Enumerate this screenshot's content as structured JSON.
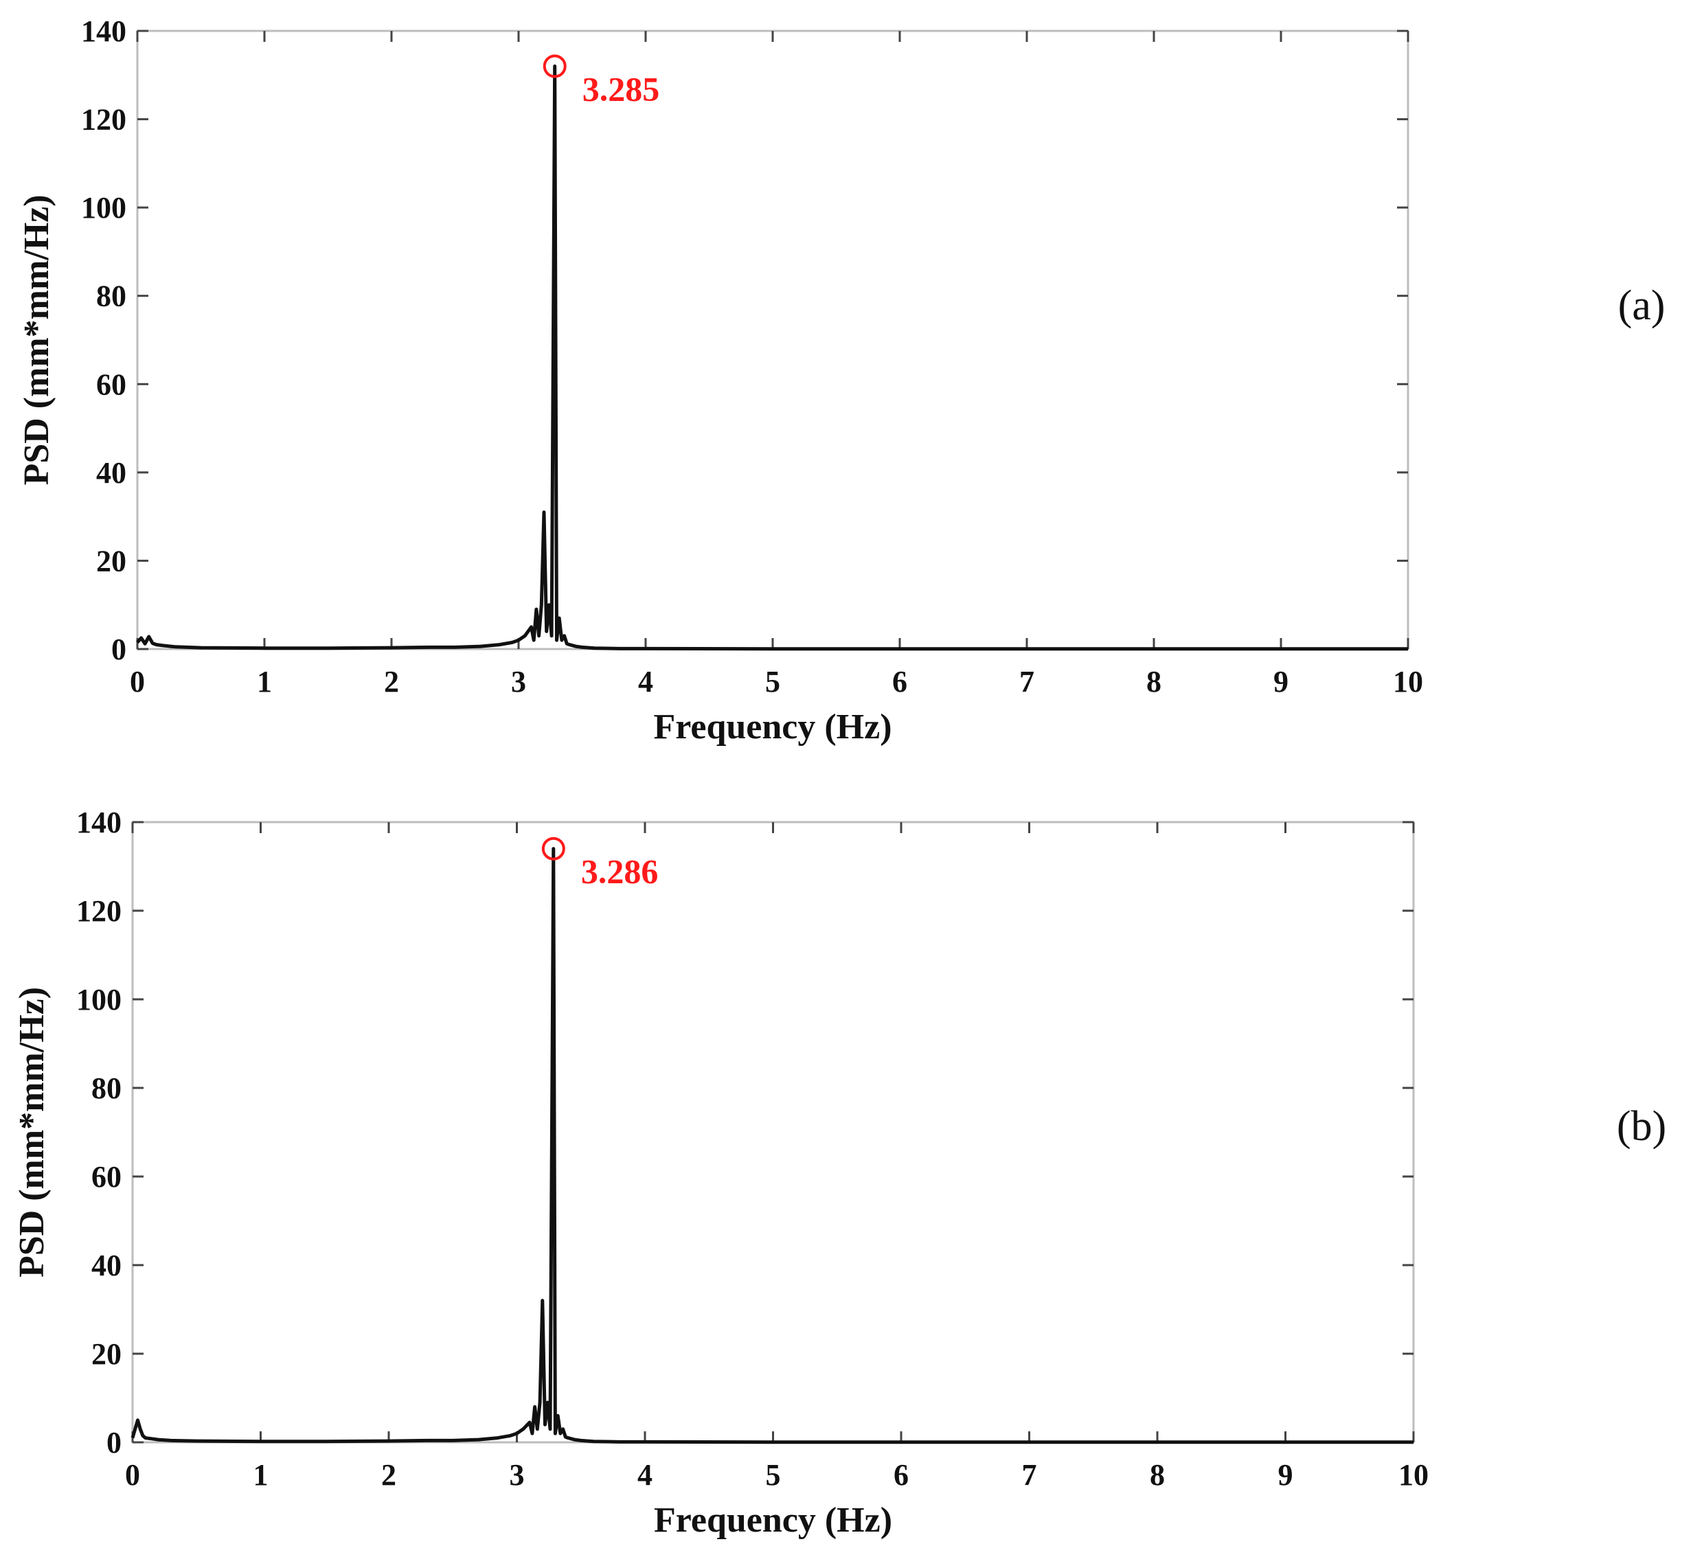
{
  "chart_data": [
    {
      "type": "line",
      "panel_label": "(a)",
      "xlabel": "Frequency (Hz)",
      "ylabel": "PSD (mm*mm/Hz)",
      "xlim": [
        0,
        10
      ],
      "ylim": [
        0,
        140
      ],
      "x_ticks": [
        "0",
        "1",
        "2",
        "3",
        "4",
        "5",
        "6",
        "7",
        "8",
        "9",
        "10"
      ],
      "y_ticks": [
        "0",
        "20",
        "40",
        "60",
        "80",
        "100",
        "120",
        "140"
      ],
      "grid": false,
      "line_color": "#111111",
      "marker_color": "#ff1a1a",
      "peak": {
        "x": 3.285,
        "y": 132,
        "label": "3.285"
      },
      "series": [
        {
          "x": [
            0,
            0.03,
            0.06,
            0.09,
            0.12,
            0.15,
            0.2,
            0.3,
            0.5,
            1.0,
            1.5,
            2.0,
            2.3,
            2.5,
            2.7,
            2.85,
            2.95,
            3.0,
            3.05,
            3.1,
            3.12,
            3.14,
            3.16,
            3.18,
            3.2,
            3.22,
            3.24,
            3.26,
            3.285,
            3.3,
            3.32,
            3.34,
            3.36,
            3.38,
            3.4,
            3.45,
            3.5,
            3.6,
            3.8,
            4.0,
            5.0,
            6.0,
            7.0,
            8.0,
            9.0,
            10.0
          ],
          "y": [
            1.5,
            2.5,
            1.2,
            2.8,
            1.3,
            1.0,
            0.8,
            0.5,
            0.3,
            0.2,
            0.2,
            0.3,
            0.4,
            0.4,
            0.6,
            1.0,
            1.5,
            2.0,
            3.0,
            5.0,
            2.0,
            9.0,
            3.0,
            10.0,
            31.0,
            4.0,
            10.0,
            3.0,
            132.0,
            2.0,
            7.0,
            2.0,
            3.0,
            1.2,
            1.0,
            0.6,
            0.4,
            0.2,
            0.1,
            0.1,
            0.05,
            0.05,
            0.05,
            0.05,
            0.05,
            0.05
          ]
        }
      ]
    },
    {
      "type": "line",
      "panel_label": "(b)",
      "xlabel": "Frequency (Hz)",
      "ylabel": "PSD (mm*mm/Hz)",
      "xlim": [
        0,
        10
      ],
      "ylim": [
        0,
        140
      ],
      "x_ticks": [
        "0",
        "1",
        "2",
        "3",
        "4",
        "5",
        "6",
        "7",
        "8",
        "9",
        "10"
      ],
      "y_ticks": [
        "0",
        "20",
        "40",
        "60",
        "80",
        "100",
        "120",
        "140"
      ],
      "grid": false,
      "line_color": "#111111",
      "marker_color": "#ff1a1a",
      "peak": {
        "x": 3.286,
        "y": 134,
        "label": "3.286"
      },
      "series": [
        {
          "x": [
            0,
            0.02,
            0.04,
            0.06,
            0.08,
            0.1,
            0.15,
            0.2,
            0.3,
            0.5,
            1.0,
            1.5,
            2.0,
            2.3,
            2.5,
            2.7,
            2.85,
            2.95,
            3.0,
            3.05,
            3.1,
            3.12,
            3.14,
            3.16,
            3.18,
            3.2,
            3.22,
            3.24,
            3.26,
            3.286,
            3.3,
            3.32,
            3.34,
            3.36,
            3.38,
            3.4,
            3.45,
            3.5,
            3.6,
            3.8,
            4.0,
            5.0,
            6.0,
            7.0,
            8.0,
            9.0,
            10.0
          ],
          "y": [
            1.0,
            3.0,
            5.0,
            3.0,
            1.5,
            1.0,
            0.8,
            0.6,
            0.4,
            0.3,
            0.2,
            0.2,
            0.3,
            0.4,
            0.4,
            0.6,
            1.0,
            1.5,
            2.0,
            3.0,
            4.5,
            2.0,
            8.0,
            3.0,
            9.0,
            32.0,
            4.0,
            9.0,
            3.0,
            134.0,
            2.0,
            6.0,
            2.0,
            3.0,
            1.2,
            1.0,
            0.6,
            0.4,
            0.2,
            0.1,
            0.1,
            0.05,
            0.05,
            0.05,
            0.05,
            0.05,
            0.05
          ]
        }
      ]
    }
  ]
}
